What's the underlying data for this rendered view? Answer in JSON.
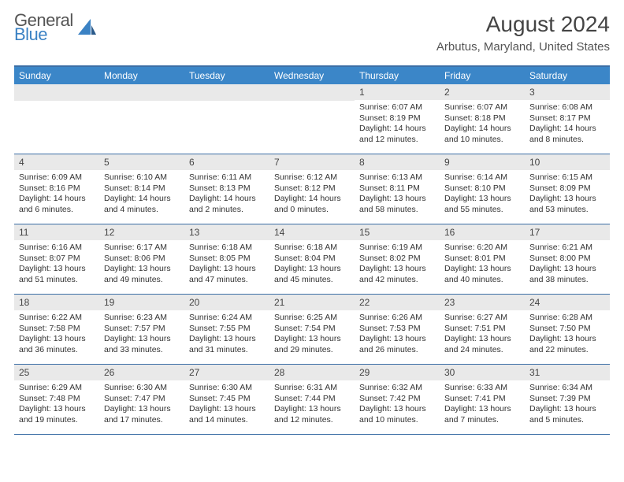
{
  "logo": {
    "line1": "General",
    "line2": "Blue"
  },
  "title": "August 2024",
  "location": "Arbutus, Maryland, United States",
  "colors": {
    "header_bg": "#3b86c8",
    "border": "#3b6ea5",
    "daynum_bg": "#e9e9e9",
    "logo_blue": "#3b82c4",
    "logo_gray": "#555555"
  },
  "weekdays": [
    "Sunday",
    "Monday",
    "Tuesday",
    "Wednesday",
    "Thursday",
    "Friday",
    "Saturday"
  ],
  "weeks": [
    [
      null,
      null,
      null,
      null,
      {
        "n": "1",
        "sr": "6:07 AM",
        "ss": "8:19 PM",
        "dl": "14 hours and 12 minutes."
      },
      {
        "n": "2",
        "sr": "6:07 AM",
        "ss": "8:18 PM",
        "dl": "14 hours and 10 minutes."
      },
      {
        "n": "3",
        "sr": "6:08 AM",
        "ss": "8:17 PM",
        "dl": "14 hours and 8 minutes."
      }
    ],
    [
      {
        "n": "4",
        "sr": "6:09 AM",
        "ss": "8:16 PM",
        "dl": "14 hours and 6 minutes."
      },
      {
        "n": "5",
        "sr": "6:10 AM",
        "ss": "8:14 PM",
        "dl": "14 hours and 4 minutes."
      },
      {
        "n": "6",
        "sr": "6:11 AM",
        "ss": "8:13 PM",
        "dl": "14 hours and 2 minutes."
      },
      {
        "n": "7",
        "sr": "6:12 AM",
        "ss": "8:12 PM",
        "dl": "14 hours and 0 minutes."
      },
      {
        "n": "8",
        "sr": "6:13 AM",
        "ss": "8:11 PM",
        "dl": "13 hours and 58 minutes."
      },
      {
        "n": "9",
        "sr": "6:14 AM",
        "ss": "8:10 PM",
        "dl": "13 hours and 55 minutes."
      },
      {
        "n": "10",
        "sr": "6:15 AM",
        "ss": "8:09 PM",
        "dl": "13 hours and 53 minutes."
      }
    ],
    [
      {
        "n": "11",
        "sr": "6:16 AM",
        "ss": "8:07 PM",
        "dl": "13 hours and 51 minutes."
      },
      {
        "n": "12",
        "sr": "6:17 AM",
        "ss": "8:06 PM",
        "dl": "13 hours and 49 minutes."
      },
      {
        "n": "13",
        "sr": "6:18 AM",
        "ss": "8:05 PM",
        "dl": "13 hours and 47 minutes."
      },
      {
        "n": "14",
        "sr": "6:18 AM",
        "ss": "8:04 PM",
        "dl": "13 hours and 45 minutes."
      },
      {
        "n": "15",
        "sr": "6:19 AM",
        "ss": "8:02 PM",
        "dl": "13 hours and 42 minutes."
      },
      {
        "n": "16",
        "sr": "6:20 AM",
        "ss": "8:01 PM",
        "dl": "13 hours and 40 minutes."
      },
      {
        "n": "17",
        "sr": "6:21 AM",
        "ss": "8:00 PM",
        "dl": "13 hours and 38 minutes."
      }
    ],
    [
      {
        "n": "18",
        "sr": "6:22 AM",
        "ss": "7:58 PM",
        "dl": "13 hours and 36 minutes."
      },
      {
        "n": "19",
        "sr": "6:23 AM",
        "ss": "7:57 PM",
        "dl": "13 hours and 33 minutes."
      },
      {
        "n": "20",
        "sr": "6:24 AM",
        "ss": "7:55 PM",
        "dl": "13 hours and 31 minutes."
      },
      {
        "n": "21",
        "sr": "6:25 AM",
        "ss": "7:54 PM",
        "dl": "13 hours and 29 minutes."
      },
      {
        "n": "22",
        "sr": "6:26 AM",
        "ss": "7:53 PM",
        "dl": "13 hours and 26 minutes."
      },
      {
        "n": "23",
        "sr": "6:27 AM",
        "ss": "7:51 PM",
        "dl": "13 hours and 24 minutes."
      },
      {
        "n": "24",
        "sr": "6:28 AM",
        "ss": "7:50 PM",
        "dl": "13 hours and 22 minutes."
      }
    ],
    [
      {
        "n": "25",
        "sr": "6:29 AM",
        "ss": "7:48 PM",
        "dl": "13 hours and 19 minutes."
      },
      {
        "n": "26",
        "sr": "6:30 AM",
        "ss": "7:47 PM",
        "dl": "13 hours and 17 minutes."
      },
      {
        "n": "27",
        "sr": "6:30 AM",
        "ss": "7:45 PM",
        "dl": "13 hours and 14 minutes."
      },
      {
        "n": "28",
        "sr": "6:31 AM",
        "ss": "7:44 PM",
        "dl": "13 hours and 12 minutes."
      },
      {
        "n": "29",
        "sr": "6:32 AM",
        "ss": "7:42 PM",
        "dl": "13 hours and 10 minutes."
      },
      {
        "n": "30",
        "sr": "6:33 AM",
        "ss": "7:41 PM",
        "dl": "13 hours and 7 minutes."
      },
      {
        "n": "31",
        "sr": "6:34 AM",
        "ss": "7:39 PM",
        "dl": "13 hours and 5 minutes."
      }
    ]
  ],
  "labels": {
    "sunrise": "Sunrise:",
    "sunset": "Sunset:",
    "daylight": "Daylight:"
  }
}
